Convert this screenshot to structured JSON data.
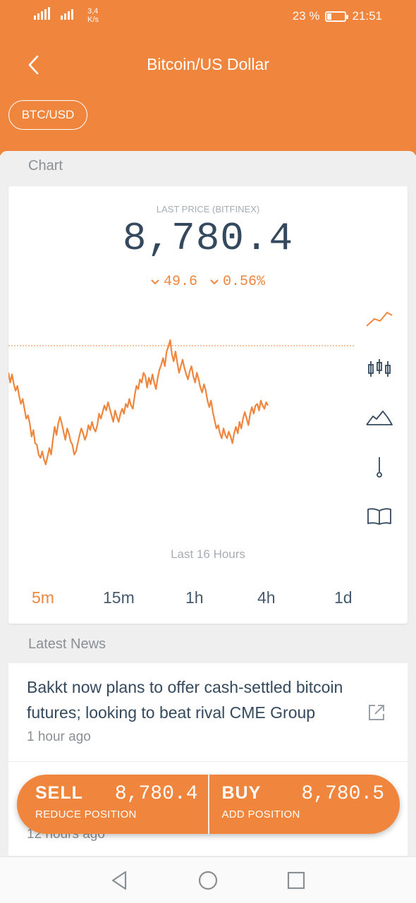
{
  "status_bar": {
    "net_speed_value": "3,4",
    "net_speed_unit": "K/s",
    "battery": "23 %",
    "battery_level": 0.23,
    "time": "21:51"
  },
  "header": {
    "title": "Bitcoin/US Dollar",
    "back_icon": "chevron-left-icon"
  },
  "pair_chip": "BTC/USD",
  "chart_section": {
    "title": "Chart",
    "last_price_label": "LAST PRICE (BITFINEX)",
    "last_price": "8,780.4",
    "change_abs": "49.6",
    "change_pct": "0.56%",
    "range_label": "Last 16 Hours",
    "intervals": [
      "5m",
      "15m",
      "1h",
      "4h",
      "1d"
    ],
    "active_interval": "5m",
    "tools": [
      "line-chart-icon",
      "candlestick-icon",
      "mountain-chart-icon",
      "depth-icon",
      "book-icon"
    ],
    "accent": "#f0863e"
  },
  "chart_data": {
    "type": "line",
    "reference_line": "current price (dotted)",
    "y_relative": [
      0.8,
      0.74,
      0.79,
      0.73,
      0.69,
      0.72,
      0.66,
      0.61,
      0.64,
      0.58,
      0.52,
      0.54,
      0.49,
      0.41,
      0.45,
      0.37,
      0.36,
      0.3,
      0.28,
      0.32,
      0.27,
      0.24,
      0.29,
      0.34,
      0.3,
      0.39,
      0.47,
      0.42,
      0.49,
      0.53,
      0.49,
      0.44,
      0.39,
      0.46,
      0.43,
      0.38,
      0.36,
      0.3,
      0.32,
      0.37,
      0.42,
      0.46,
      0.43,
      0.39,
      0.42,
      0.48,
      0.45,
      0.5,
      0.46,
      0.44,
      0.48,
      0.55,
      0.52,
      0.56,
      0.6,
      0.57,
      0.62,
      0.58,
      0.54,
      0.5,
      0.57,
      0.53,
      0.5,
      0.55,
      0.58,
      0.55,
      0.61,
      0.59,
      0.64,
      0.6,
      0.58,
      0.66,
      0.72,
      0.7,
      0.76,
      0.74,
      0.8,
      0.78,
      0.71,
      0.77,
      0.73,
      0.79,
      0.74,
      0.7,
      0.77,
      0.82,
      0.85,
      0.89,
      0.84,
      0.93,
      0.96,
      1.0,
      0.91,
      0.87,
      0.93,
      0.86,
      0.8,
      0.84,
      0.88,
      0.83,
      0.79,
      0.76,
      0.81,
      0.84,
      0.78,
      0.74,
      0.8,
      0.76,
      0.71,
      0.68,
      0.73,
      0.69,
      0.63,
      0.59,
      0.63,
      0.56,
      0.51,
      0.46,
      0.48,
      0.43,
      0.4,
      0.46,
      0.42,
      0.4,
      0.44,
      0.41,
      0.37,
      0.43,
      0.47,
      0.43,
      0.5,
      0.46,
      0.52,
      0.56,
      0.52,
      0.48,
      0.55,
      0.59,
      0.55,
      0.6,
      0.61,
      0.57,
      0.63,
      0.6,
      0.58,
      0.62,
      0.6
    ]
  },
  "news_section": {
    "title": "Latest News",
    "items": [
      {
        "title": "Bakkt now plans to offer cash-settled bitcoin futures; looking to beat rival CME Group",
        "time": "1 hour ago",
        "icon": "external-link-icon"
      },
      {
        "title": "",
        "time": "12 hours ago"
      }
    ]
  },
  "trade_bar": {
    "sell_label": "SELL",
    "sell_price": "8,780.4",
    "sell_sub": "REDUCE POSITION",
    "buy_label": "BUY",
    "buy_price": "8,780.5",
    "buy_sub": "ADD POSITION"
  },
  "nav_bar": {
    "buttons": [
      "back-nav-icon",
      "home-nav-icon",
      "recents-nav-icon"
    ]
  }
}
